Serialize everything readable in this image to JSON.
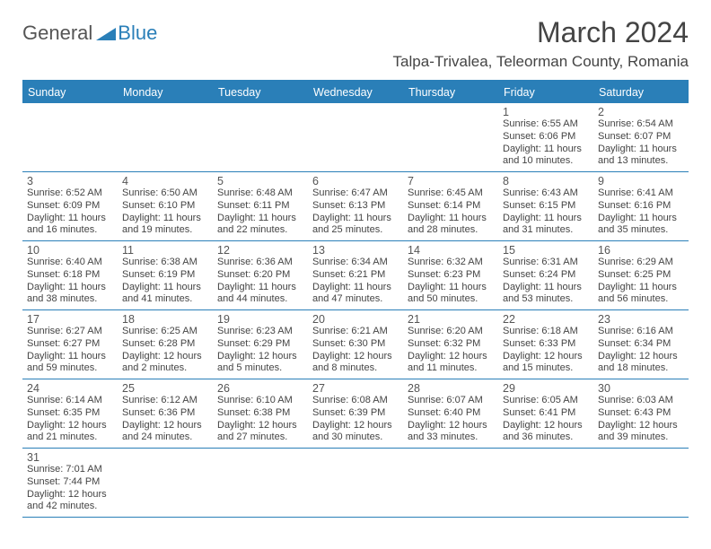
{
  "logo": {
    "general": "General",
    "blue": "Blue"
  },
  "title": "March 2024",
  "location": "Talpa-Trivalea, Teleorman County, Romania",
  "colors": {
    "header_bg": "#2a7fb8",
    "text": "#444444",
    "day_text": "#555555"
  },
  "weekdays": [
    "Sunday",
    "Monday",
    "Tuesday",
    "Wednesday",
    "Thursday",
    "Friday",
    "Saturday"
  ],
  "weeks": [
    [
      null,
      null,
      null,
      null,
      null,
      {
        "n": "1",
        "sr": "Sunrise: 6:55 AM",
        "ss": "Sunset: 6:06 PM",
        "d1": "Daylight: 11 hours",
        "d2": "and 10 minutes."
      },
      {
        "n": "2",
        "sr": "Sunrise: 6:54 AM",
        "ss": "Sunset: 6:07 PM",
        "d1": "Daylight: 11 hours",
        "d2": "and 13 minutes."
      }
    ],
    [
      {
        "n": "3",
        "sr": "Sunrise: 6:52 AM",
        "ss": "Sunset: 6:09 PM",
        "d1": "Daylight: 11 hours",
        "d2": "and 16 minutes."
      },
      {
        "n": "4",
        "sr": "Sunrise: 6:50 AM",
        "ss": "Sunset: 6:10 PM",
        "d1": "Daylight: 11 hours",
        "d2": "and 19 minutes."
      },
      {
        "n": "5",
        "sr": "Sunrise: 6:48 AM",
        "ss": "Sunset: 6:11 PM",
        "d1": "Daylight: 11 hours",
        "d2": "and 22 minutes."
      },
      {
        "n": "6",
        "sr": "Sunrise: 6:47 AM",
        "ss": "Sunset: 6:13 PM",
        "d1": "Daylight: 11 hours",
        "d2": "and 25 minutes."
      },
      {
        "n": "7",
        "sr": "Sunrise: 6:45 AM",
        "ss": "Sunset: 6:14 PM",
        "d1": "Daylight: 11 hours",
        "d2": "and 28 minutes."
      },
      {
        "n": "8",
        "sr": "Sunrise: 6:43 AM",
        "ss": "Sunset: 6:15 PM",
        "d1": "Daylight: 11 hours",
        "d2": "and 31 minutes."
      },
      {
        "n": "9",
        "sr": "Sunrise: 6:41 AM",
        "ss": "Sunset: 6:16 PM",
        "d1": "Daylight: 11 hours",
        "d2": "and 35 minutes."
      }
    ],
    [
      {
        "n": "10",
        "sr": "Sunrise: 6:40 AM",
        "ss": "Sunset: 6:18 PM",
        "d1": "Daylight: 11 hours",
        "d2": "and 38 minutes."
      },
      {
        "n": "11",
        "sr": "Sunrise: 6:38 AM",
        "ss": "Sunset: 6:19 PM",
        "d1": "Daylight: 11 hours",
        "d2": "and 41 minutes."
      },
      {
        "n": "12",
        "sr": "Sunrise: 6:36 AM",
        "ss": "Sunset: 6:20 PM",
        "d1": "Daylight: 11 hours",
        "d2": "and 44 minutes."
      },
      {
        "n": "13",
        "sr": "Sunrise: 6:34 AM",
        "ss": "Sunset: 6:21 PM",
        "d1": "Daylight: 11 hours",
        "d2": "and 47 minutes."
      },
      {
        "n": "14",
        "sr": "Sunrise: 6:32 AM",
        "ss": "Sunset: 6:23 PM",
        "d1": "Daylight: 11 hours",
        "d2": "and 50 minutes."
      },
      {
        "n": "15",
        "sr": "Sunrise: 6:31 AM",
        "ss": "Sunset: 6:24 PM",
        "d1": "Daylight: 11 hours",
        "d2": "and 53 minutes."
      },
      {
        "n": "16",
        "sr": "Sunrise: 6:29 AM",
        "ss": "Sunset: 6:25 PM",
        "d1": "Daylight: 11 hours",
        "d2": "and 56 minutes."
      }
    ],
    [
      {
        "n": "17",
        "sr": "Sunrise: 6:27 AM",
        "ss": "Sunset: 6:27 PM",
        "d1": "Daylight: 11 hours",
        "d2": "and 59 minutes."
      },
      {
        "n": "18",
        "sr": "Sunrise: 6:25 AM",
        "ss": "Sunset: 6:28 PM",
        "d1": "Daylight: 12 hours",
        "d2": "and 2 minutes."
      },
      {
        "n": "19",
        "sr": "Sunrise: 6:23 AM",
        "ss": "Sunset: 6:29 PM",
        "d1": "Daylight: 12 hours",
        "d2": "and 5 minutes."
      },
      {
        "n": "20",
        "sr": "Sunrise: 6:21 AM",
        "ss": "Sunset: 6:30 PM",
        "d1": "Daylight: 12 hours",
        "d2": "and 8 minutes."
      },
      {
        "n": "21",
        "sr": "Sunrise: 6:20 AM",
        "ss": "Sunset: 6:32 PM",
        "d1": "Daylight: 12 hours",
        "d2": "and 11 minutes."
      },
      {
        "n": "22",
        "sr": "Sunrise: 6:18 AM",
        "ss": "Sunset: 6:33 PM",
        "d1": "Daylight: 12 hours",
        "d2": "and 15 minutes."
      },
      {
        "n": "23",
        "sr": "Sunrise: 6:16 AM",
        "ss": "Sunset: 6:34 PM",
        "d1": "Daylight: 12 hours",
        "d2": "and 18 minutes."
      }
    ],
    [
      {
        "n": "24",
        "sr": "Sunrise: 6:14 AM",
        "ss": "Sunset: 6:35 PM",
        "d1": "Daylight: 12 hours",
        "d2": "and 21 minutes."
      },
      {
        "n": "25",
        "sr": "Sunrise: 6:12 AM",
        "ss": "Sunset: 6:36 PM",
        "d1": "Daylight: 12 hours",
        "d2": "and 24 minutes."
      },
      {
        "n": "26",
        "sr": "Sunrise: 6:10 AM",
        "ss": "Sunset: 6:38 PM",
        "d1": "Daylight: 12 hours",
        "d2": "and 27 minutes."
      },
      {
        "n": "27",
        "sr": "Sunrise: 6:08 AM",
        "ss": "Sunset: 6:39 PM",
        "d1": "Daylight: 12 hours",
        "d2": "and 30 minutes."
      },
      {
        "n": "28",
        "sr": "Sunrise: 6:07 AM",
        "ss": "Sunset: 6:40 PM",
        "d1": "Daylight: 12 hours",
        "d2": "and 33 minutes."
      },
      {
        "n": "29",
        "sr": "Sunrise: 6:05 AM",
        "ss": "Sunset: 6:41 PM",
        "d1": "Daylight: 12 hours",
        "d2": "and 36 minutes."
      },
      {
        "n": "30",
        "sr": "Sunrise: 6:03 AM",
        "ss": "Sunset: 6:43 PM",
        "d1": "Daylight: 12 hours",
        "d2": "and 39 minutes."
      }
    ],
    [
      {
        "n": "31",
        "sr": "Sunrise: 7:01 AM",
        "ss": "Sunset: 7:44 PM",
        "d1": "Daylight: 12 hours",
        "d2": "and 42 minutes."
      },
      null,
      null,
      null,
      null,
      null,
      null
    ]
  ]
}
